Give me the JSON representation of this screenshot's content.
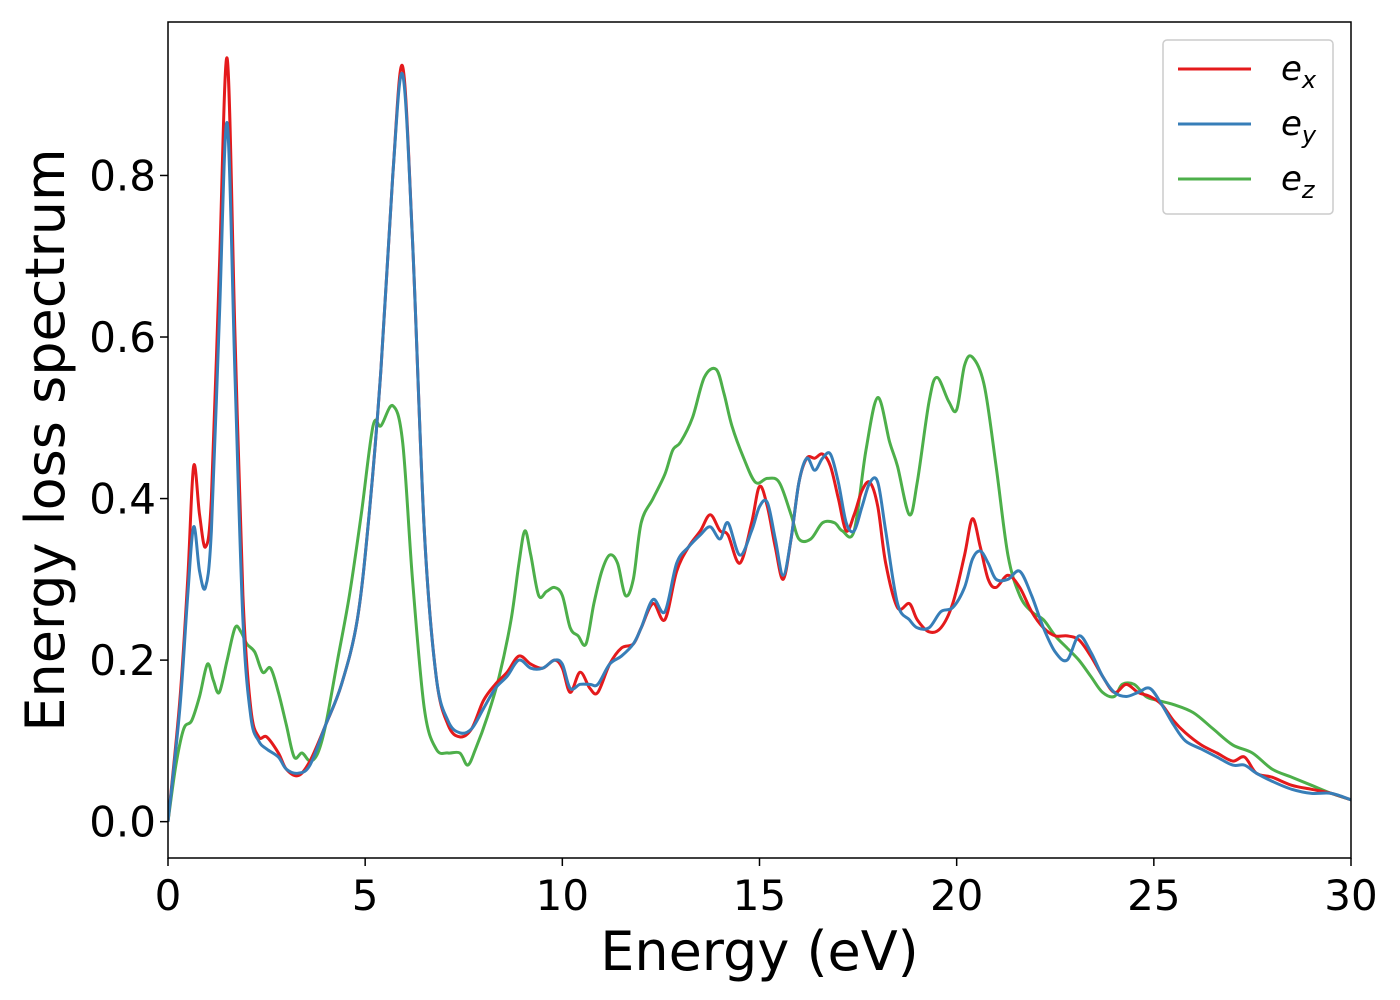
{
  "chart_data": {
    "type": "line",
    "xlabel": "Energy (eV)",
    "ylabel": "Energy loss spectrum",
    "xlim": [
      0,
      30
    ],
    "ylim": [
      -0.045,
      0.99
    ],
    "xticks": [
      0,
      5,
      10,
      15,
      20,
      25,
      30
    ],
    "xtick_labels": [
      "0",
      "5",
      "10",
      "15",
      "20",
      "25",
      "30"
    ],
    "yticks": [
      0.0,
      0.2,
      0.4,
      0.6,
      0.8
    ],
    "ytick_labels": [
      "0.0",
      "0.2",
      "0.4",
      "0.6",
      "0.8"
    ],
    "grid": false,
    "legend_position": "top-right",
    "series": [
      {
        "name": "e_x",
        "label_main": "e",
        "label_sub": "x",
        "color": "#e41a1c",
        "x": [
          0,
          0.3,
          0.5,
          0.65,
          0.8,
          0.95,
          1.1,
          1.3,
          1.5,
          1.7,
          1.9,
          2.1,
          2.3,
          2.5,
          2.8,
          3.0,
          3.3,
          3.6,
          4.0,
          4.4,
          4.8,
          5.1,
          5.4,
          5.7,
          5.95,
          6.2,
          6.5,
          6.8,
          7.1,
          7.4,
          7.7,
          8.0,
          8.3,
          8.6,
          8.9,
          9.2,
          9.5,
          9.8,
          10.0,
          10.2,
          10.45,
          10.7,
          10.9,
          11.2,
          11.5,
          11.8,
          12.0,
          12.3,
          12.6,
          12.9,
          13.2,
          13.5,
          13.75,
          14.0,
          14.2,
          14.5,
          14.8,
          15.0,
          15.2,
          15.4,
          15.6,
          15.8,
          16.0,
          16.2,
          16.4,
          16.6,
          16.8,
          17.0,
          17.2,
          17.4,
          17.6,
          17.8,
          18.0,
          18.2,
          18.5,
          18.8,
          19.0,
          19.3,
          19.6,
          19.9,
          20.2,
          20.4,
          20.6,
          20.8,
          21.0,
          21.3,
          21.6,
          21.9,
          22.2,
          22.5,
          22.8,
          23.1,
          23.4,
          23.7,
          24.0,
          24.3,
          24.6,
          24.9,
          25.2,
          25.5,
          25.8,
          26.2,
          26.6,
          27.0,
          27.3,
          27.6,
          28.0,
          28.5,
          29.0,
          29.5,
          30.0
        ],
        "y": [
          0.0,
          0.15,
          0.3,
          0.44,
          0.38,
          0.34,
          0.4,
          0.68,
          0.945,
          0.6,
          0.28,
          0.14,
          0.105,
          0.105,
          0.085,
          0.065,
          0.057,
          0.075,
          0.12,
          0.17,
          0.25,
          0.38,
          0.56,
          0.8,
          0.935,
          0.72,
          0.36,
          0.18,
          0.12,
          0.105,
          0.115,
          0.15,
          0.17,
          0.185,
          0.205,
          0.195,
          0.19,
          0.2,
          0.19,
          0.16,
          0.185,
          0.165,
          0.16,
          0.195,
          0.215,
          0.22,
          0.24,
          0.27,
          0.25,
          0.31,
          0.34,
          0.36,
          0.38,
          0.36,
          0.355,
          0.32,
          0.37,
          0.415,
          0.39,
          0.34,
          0.3,
          0.35,
          0.42,
          0.45,
          0.45,
          0.455,
          0.44,
          0.4,
          0.36,
          0.38,
          0.41,
          0.42,
          0.39,
          0.32,
          0.265,
          0.27,
          0.25,
          0.235,
          0.24,
          0.27,
          0.33,
          0.375,
          0.34,
          0.3,
          0.29,
          0.305,
          0.29,
          0.26,
          0.24,
          0.23,
          0.23,
          0.225,
          0.205,
          0.18,
          0.16,
          0.17,
          0.16,
          0.155,
          0.145,
          0.125,
          0.11,
          0.095,
          0.085,
          0.075,
          0.08,
          0.06,
          0.055,
          0.045,
          0.04,
          0.035,
          0.027
        ]
      },
      {
        "name": "e_y",
        "label_main": "e",
        "label_sub": "y",
        "color": "#377eb8",
        "x": [
          0,
          0.3,
          0.5,
          0.65,
          0.8,
          0.95,
          1.1,
          1.3,
          1.5,
          1.7,
          1.9,
          2.1,
          2.3,
          2.5,
          2.8,
          3.0,
          3.3,
          3.6,
          4.0,
          4.4,
          4.8,
          5.1,
          5.4,
          5.7,
          5.95,
          6.2,
          6.5,
          6.8,
          7.1,
          7.4,
          7.7,
          8.0,
          8.3,
          8.6,
          8.9,
          9.2,
          9.5,
          9.8,
          10.0,
          10.2,
          10.45,
          10.7,
          10.9,
          11.2,
          11.5,
          11.8,
          12.0,
          12.3,
          12.6,
          12.9,
          13.2,
          13.5,
          13.75,
          14.0,
          14.2,
          14.5,
          14.8,
          15.0,
          15.2,
          15.4,
          15.6,
          15.8,
          16.0,
          16.2,
          16.4,
          16.6,
          16.8,
          17.0,
          17.2,
          17.4,
          17.6,
          17.8,
          18.0,
          18.2,
          18.5,
          18.8,
          19.0,
          19.3,
          19.6,
          19.9,
          20.2,
          20.4,
          20.6,
          20.8,
          21.0,
          21.3,
          21.6,
          21.9,
          22.2,
          22.5,
          22.8,
          23.1,
          23.4,
          23.7,
          24.0,
          24.3,
          24.6,
          24.9,
          25.2,
          25.5,
          25.8,
          26.2,
          26.6,
          27.0,
          27.3,
          27.6,
          28.0,
          28.5,
          29.0,
          29.5,
          30.0
        ],
        "y": [
          0.0,
          0.14,
          0.28,
          0.365,
          0.31,
          0.29,
          0.36,
          0.62,
          0.865,
          0.55,
          0.25,
          0.13,
          0.1,
          0.09,
          0.08,
          0.065,
          0.06,
          0.07,
          0.12,
          0.17,
          0.25,
          0.38,
          0.56,
          0.8,
          0.925,
          0.72,
          0.36,
          0.18,
          0.125,
          0.11,
          0.115,
          0.14,
          0.165,
          0.18,
          0.2,
          0.19,
          0.19,
          0.2,
          0.195,
          0.165,
          0.17,
          0.17,
          0.17,
          0.195,
          0.205,
          0.22,
          0.24,
          0.275,
          0.26,
          0.32,
          0.34,
          0.355,
          0.365,
          0.35,
          0.37,
          0.33,
          0.36,
          0.39,
          0.395,
          0.35,
          0.305,
          0.35,
          0.42,
          0.45,
          0.435,
          0.45,
          0.455,
          0.42,
          0.37,
          0.36,
          0.39,
          0.42,
          0.42,
          0.36,
          0.27,
          0.25,
          0.24,
          0.24,
          0.26,
          0.265,
          0.29,
          0.325,
          0.335,
          0.32,
          0.3,
          0.3,
          0.31,
          0.28,
          0.24,
          0.21,
          0.2,
          0.23,
          0.21,
          0.18,
          0.16,
          0.155,
          0.16,
          0.165,
          0.145,
          0.12,
          0.1,
          0.09,
          0.08,
          0.07,
          0.07,
          0.06,
          0.05,
          0.04,
          0.035,
          0.035,
          0.027
        ]
      },
      {
        "name": "e_z",
        "label_main": "e",
        "label_sub": "z",
        "color": "#4daf4a",
        "x": [
          0,
          0.2,
          0.4,
          0.6,
          0.8,
          1.0,
          1.15,
          1.3,
          1.5,
          1.7,
          1.85,
          2.0,
          2.2,
          2.4,
          2.6,
          2.8,
          3.0,
          3.2,
          3.4,
          3.6,
          3.8,
          4.0,
          4.3,
          4.6,
          4.9,
          5.2,
          5.4,
          5.7,
          5.95,
          6.2,
          6.5,
          6.8,
          7.1,
          7.4,
          7.6,
          7.8,
          8.1,
          8.4,
          8.7,
          8.9,
          9.05,
          9.2,
          9.4,
          9.6,
          9.8,
          10.0,
          10.2,
          10.4,
          10.6,
          10.8,
          11.0,
          11.2,
          11.4,
          11.6,
          11.8,
          12.0,
          12.3,
          12.6,
          12.8,
          13.0,
          13.3,
          13.6,
          13.9,
          14.1,
          14.3,
          14.6,
          14.9,
          15.2,
          15.5,
          15.8,
          16.0,
          16.3,
          16.6,
          16.9,
          17.1,
          17.4,
          17.7,
          18.0,
          18.3,
          18.5,
          18.8,
          19.0,
          19.3,
          19.5,
          19.8,
          20.0,
          20.2,
          20.4,
          20.7,
          21.0,
          21.3,
          21.6,
          21.9,
          22.2,
          22.5,
          22.8,
          23.1,
          23.4,
          23.7,
          24.0,
          24.2,
          24.5,
          24.8,
          25.1,
          25.5,
          26.0,
          26.5,
          27.0,
          27.5,
          28.0,
          28.5,
          29.0,
          29.5,
          30.0
        ],
        "y": [
          0.0,
          0.07,
          0.115,
          0.125,
          0.155,
          0.195,
          0.175,
          0.16,
          0.2,
          0.24,
          0.235,
          0.22,
          0.21,
          0.185,
          0.19,
          0.16,
          0.12,
          0.08,
          0.085,
          0.075,
          0.085,
          0.12,
          0.2,
          0.28,
          0.38,
          0.49,
          0.49,
          0.515,
          0.47,
          0.3,
          0.14,
          0.09,
          0.085,
          0.085,
          0.07,
          0.09,
          0.13,
          0.18,
          0.25,
          0.32,
          0.36,
          0.33,
          0.28,
          0.285,
          0.29,
          0.28,
          0.24,
          0.23,
          0.22,
          0.27,
          0.31,
          0.33,
          0.32,
          0.28,
          0.3,
          0.37,
          0.4,
          0.43,
          0.46,
          0.47,
          0.5,
          0.55,
          0.56,
          0.53,
          0.49,
          0.45,
          0.42,
          0.425,
          0.42,
          0.38,
          0.35,
          0.35,
          0.37,
          0.37,
          0.36,
          0.36,
          0.46,
          0.525,
          0.47,
          0.44,
          0.38,
          0.42,
          0.52,
          0.55,
          0.52,
          0.51,
          0.565,
          0.575,
          0.54,
          0.44,
          0.33,
          0.28,
          0.26,
          0.25,
          0.23,
          0.215,
          0.2,
          0.18,
          0.16,
          0.155,
          0.17,
          0.17,
          0.155,
          0.15,
          0.145,
          0.135,
          0.115,
          0.095,
          0.085,
          0.065,
          0.055,
          0.045,
          0.035,
          0.027
        ]
      }
    ]
  }
}
